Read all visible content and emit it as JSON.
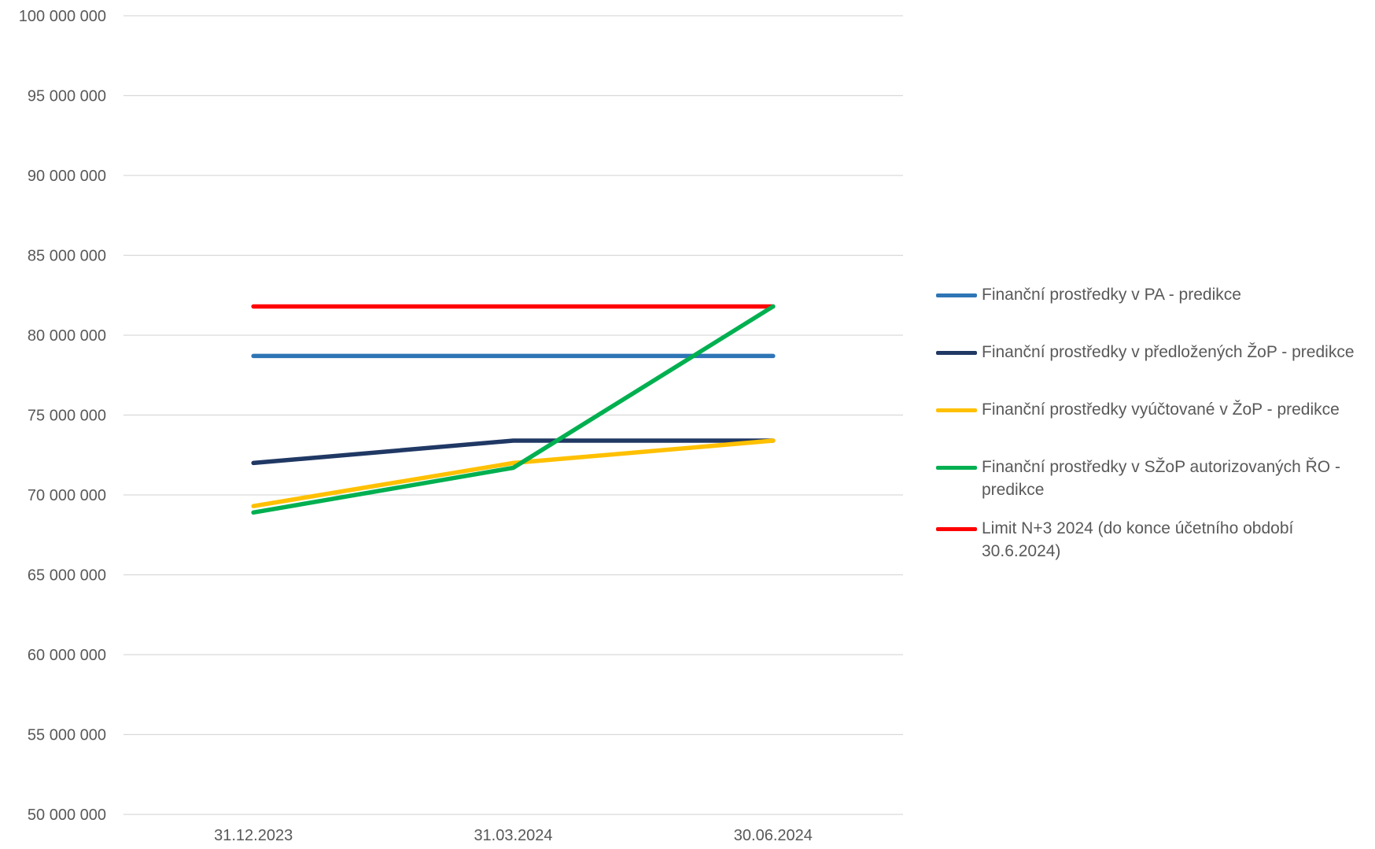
{
  "chart_data": {
    "type": "line",
    "title": "",
    "xlabel": "",
    "ylabel": "",
    "categories": [
      "31.12.2023",
      "31.03.2024",
      "30.06.2024"
    ],
    "ylim": [
      50000000,
      100000000
    ],
    "ytick_step": 5000000,
    "y_tick_labels": [
      "50 000 000",
      "55 000 000",
      "60 000 000",
      "65 000 000",
      "70 000 000",
      "75 000 000",
      "80 000 000",
      "85 000 000",
      "90 000 000",
      "95 000 000",
      "100 000 000"
    ],
    "grid": true,
    "legend_position": "right",
    "series": [
      {
        "name": "Finanční prostředky v PA - predikce",
        "color": "#2E75B6",
        "values": [
          78700000,
          78700000,
          78700000
        ]
      },
      {
        "name": "Finanční prostředky v předložených ŽoP - predikce",
        "color": "#203864",
        "values": [
          72000000,
          73400000,
          73400000
        ]
      },
      {
        "name": "Finanční prostředky vyúčtované v ŽoP - predikce",
        "color": "#FFC000",
        "values": [
          69300000,
          72000000,
          73400000
        ]
      },
      {
        "name": "Finanční prostředky v SŽoP autorizovaných ŘO - predikce",
        "color": "#00B050",
        "values": [
          68900000,
          71700000,
          81800000
        ]
      },
      {
        "name": "Limit N+3 2024 (do konce účetního období 30.6.2024)",
        "color": "#FF0000",
        "values": [
          81800000,
          81800000,
          81800000
        ]
      }
    ]
  }
}
